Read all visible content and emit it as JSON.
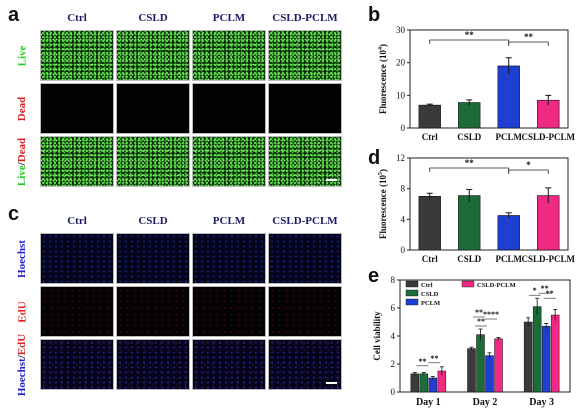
{
  "panels": {
    "a": "a",
    "b": "b",
    "c": "c",
    "d": "d",
    "e": "e"
  },
  "image_grid_top": {
    "columns": [
      "Ctrl",
      "CSLD",
      "PCLM",
      "CSLD-PCLM"
    ],
    "rows": [
      {
        "label_parts": [
          {
            "text": "Live",
            "color": "#22cc22"
          }
        ],
        "type": "live"
      },
      {
        "label_parts": [
          {
            "text": "Dead",
            "color": "#dd2222"
          }
        ],
        "type": "dead"
      },
      {
        "label_parts": [
          {
            "text": "Live",
            "color": "#22cc22"
          },
          {
            "text": "/",
            "color": "#111111"
          },
          {
            "text": "Dead",
            "color": "#dd2222"
          }
        ],
        "type": "live"
      }
    ]
  },
  "image_grid_bottom": {
    "columns": [
      "Ctrl",
      "CSLD",
      "PCLM",
      "CSLD-PCLM"
    ],
    "rows": [
      {
        "label_parts": [
          {
            "text": "Hoechst",
            "color": "#2222cc"
          }
        ],
        "type": "blue"
      },
      {
        "label_parts": [
          {
            "text": "EdU",
            "color": "#dd2222"
          }
        ],
        "type": "dimred"
      },
      {
        "label_parts": [
          {
            "text": "Hoechst",
            "color": "#2222cc"
          },
          {
            "text": "/",
            "color": "#111111"
          },
          {
            "text": "EdU",
            "color": "#dd2222"
          }
        ],
        "type": "merge"
      }
    ]
  },
  "chart_data": [
    {
      "panel": "b",
      "type": "bar",
      "categories": [
        "Ctrl",
        "CSLD",
        "PCLM",
        "CSLD-PCLM"
      ],
      "values": [
        7,
        7.8,
        19,
        8.5
      ],
      "errors": [
        0.3,
        0.8,
        2.5,
        1.5
      ],
      "colors": [
        "#3a3a3a",
        "#1e6b3a",
        "#1f3fd0",
        "#ee2a82"
      ],
      "ylabel": "Fluorescence (10^4)",
      "ylabel_base": "Fluorescence (10",
      "ylabel_exp": "4",
      "ylabel_close": ")",
      "ylim": [
        0,
        30
      ],
      "yticks": [
        0,
        10,
        20,
        30
      ],
      "significance": [
        {
          "from": 0,
          "to": 2,
          "label": "**"
        },
        {
          "from": 2,
          "to": 3,
          "label": "**"
        }
      ]
    },
    {
      "panel": "d",
      "type": "bar",
      "categories": [
        "Ctrl",
        "CSLD",
        "PCLM",
        "CSLD-PCLM"
      ],
      "values": [
        7.0,
        7.1,
        4.5,
        7.1
      ],
      "errors": [
        0.4,
        0.8,
        0.35,
        1.0
      ],
      "colors": [
        "#3a3a3a",
        "#1e6b3a",
        "#1f3fd0",
        "#ee2a82"
      ],
      "ylabel": "Fluorescence (10^5)",
      "ylabel_base": "Fluorescence (10",
      "ylabel_exp": "5",
      "ylabel_close": ")",
      "ylim": [
        0,
        12
      ],
      "yticks": [
        0,
        4,
        8,
        12
      ],
      "significance": [
        {
          "from": 0,
          "to": 2,
          "label": "**"
        },
        {
          "from": 2,
          "to": 3,
          "label": "*"
        }
      ]
    },
    {
      "panel": "e",
      "type": "bar",
      "categories": [
        "Day 1",
        "Day 2",
        "Day 3"
      ],
      "series": [
        {
          "name": "Ctrl",
          "color": "#3a3a3a",
          "values": [
            1.3,
            3.1,
            5.0
          ],
          "errors": [
            0.1,
            0.1,
            0.3
          ]
        },
        {
          "name": "CSLD",
          "color": "#1e6b3a",
          "values": [
            1.3,
            4.1,
            6.1
          ],
          "errors": [
            0.1,
            0.4,
            0.6
          ]
        },
        {
          "name": "PCLM",
          "color": "#1f3fd0",
          "values": [
            1.0,
            2.6,
            4.7
          ],
          "errors": [
            0.1,
            0.2,
            0.2
          ]
        },
        {
          "name": "CSLD-PCLM",
          "color": "#ee2a82",
          "values": [
            1.5,
            3.8,
            5.5
          ],
          "errors": [
            0.3,
            0.1,
            0.4
          ]
        }
      ],
      "ylabel": "Cell viability",
      "ylim": [
        0,
        8
      ],
      "yticks": [
        0,
        2,
        4,
        6,
        8
      ],
      "legend": "top-left",
      "significance_labels": [
        "**",
        "**",
        "**",
        "**",
        "****",
        "*",
        "**",
        "**"
      ]
    }
  ]
}
